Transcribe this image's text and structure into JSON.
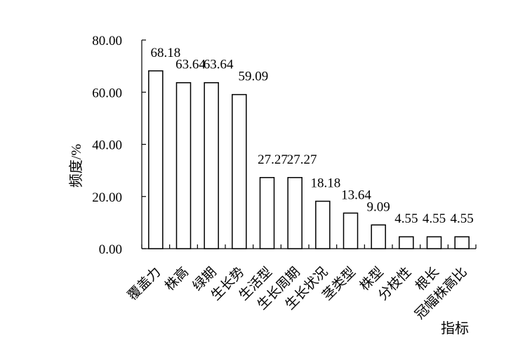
{
  "chart_data": {
    "type": "bar",
    "title": "",
    "xlabel": "指标",
    "ylabel": "频度/%",
    "ylim": [
      0,
      80
    ],
    "yticks": [
      "0.00",
      "20.00",
      "40.00",
      "60.00",
      "80.00"
    ],
    "categories": [
      "覆盖力",
      "株高",
      "绿期",
      "生长势",
      "生活型",
      "生长周期",
      "生长状况",
      "茎类型",
      "株型",
      "分枝性",
      "根长",
      "冠幅株高比"
    ],
    "values": [
      68.18,
      63.64,
      63.64,
      59.09,
      27.27,
      27.27,
      18.18,
      13.64,
      9.09,
      4.55,
      4.55,
      4.55
    ],
    "value_labels": [
      "68.18",
      "63.64",
      "63.64",
      "59.09",
      "27.27",
      "27.27",
      "18.18",
      "13.64",
      "9.09",
      "4.55",
      "4.55",
      "4.55"
    ],
    "colors": {
      "bar_fill": "#ffffff",
      "bar_stroke": "#000000",
      "axis": "#000000"
    },
    "grid": false,
    "legend": "none"
  }
}
